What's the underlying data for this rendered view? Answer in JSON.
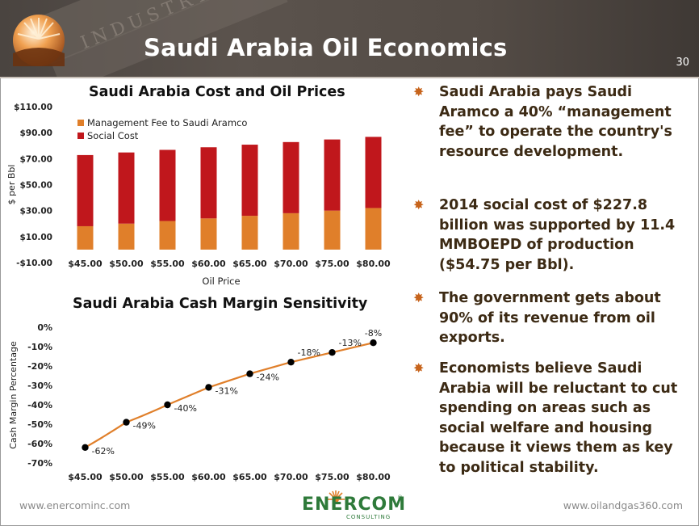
{
  "slide": {
    "title": "Saudi Arabia Oil Economics",
    "page_number": "30",
    "header_watermark": "INDUSTRY",
    "colors": {
      "header": "#524a44",
      "accent_orange": "#e07f2a",
      "accent_red": "#c0171c",
      "bullet_text": "#3c2a14"
    }
  },
  "bullets": [
    "Saudi Arabia pays Saudi Aramco a 40% “management fee” to operate the country's resource development.",
    "2014 social cost of $227.8 billion was supported by 11.4 MMBOEPD of production ($54.75 per Bbl).",
    "The government gets about 90% of its revenue from oil exports.",
    "Economists believe Saudi Arabia will be reluctant to cut spending on areas such as social welfare and housing because it views them as key to political stability."
  ],
  "footer": {
    "left": "www.enercominc.com",
    "right": "www.oilandgas360.com",
    "brand_name": "ENERCOM",
    "brand_sub": "CONSULTING",
    "brand_reg": "®"
  },
  "chart_data": [
    {
      "type": "bar",
      "stacked": true,
      "title": "Saudi Arabia Cost and Oil Prices",
      "xlabel": "Oil Price",
      "ylabel": "$ per Bbl",
      "categories": [
        "$45.00",
        "$50.00",
        "$55.00",
        "$60.00",
        "$65.00",
        "$70.00",
        "$75.00",
        "$80.00"
      ],
      "series": [
        {
          "name": "Management Fee to Saudi Aramco",
          "color": "#e07f2a",
          "values": [
            18,
            20,
            22,
            24,
            26,
            28,
            30,
            32
          ]
        },
        {
          "name": "Social Cost",
          "color": "#c0171c",
          "values": [
            54.75,
            54.75,
            54.75,
            54.75,
            54.75,
            54.75,
            54.75,
            54.75
          ]
        }
      ],
      "yticks": [
        "$110.00",
        "$90.00",
        "$70.00",
        "$50.00",
        "$30.00",
        "$10.00",
        "-$10.00"
      ],
      "ylim": [
        -10,
        110
      ],
      "legend": "top-left",
      "grid": false
    },
    {
      "type": "line",
      "title": "Saudi Arabia Cash Margin Sensitivity",
      "xlabel": "",
      "ylabel": "Cash Margin Percentage",
      "categories": [
        "$45.00",
        "$50.00",
        "$55.00",
        "$60.00",
        "$65.00",
        "$70.00",
        "$75.00",
        "$80.00"
      ],
      "series": [
        {
          "color": "#e07f2a",
          "values": [
            -62,
            -49,
            -40,
            -31,
            -24,
            -18,
            -13,
            -8
          ],
          "labels": [
            "-62%",
            "-49%",
            "-40%",
            "-31%",
            "-24%",
            "-18%",
            "-13%",
            "-8%"
          ]
        }
      ],
      "yticks": [
        "0%",
        "-10%",
        "-20%",
        "-30%",
        "-40%",
        "-50%",
        "-60%",
        "-70%"
      ],
      "ylim": [
        -70,
        0
      ],
      "grid": false
    }
  ]
}
